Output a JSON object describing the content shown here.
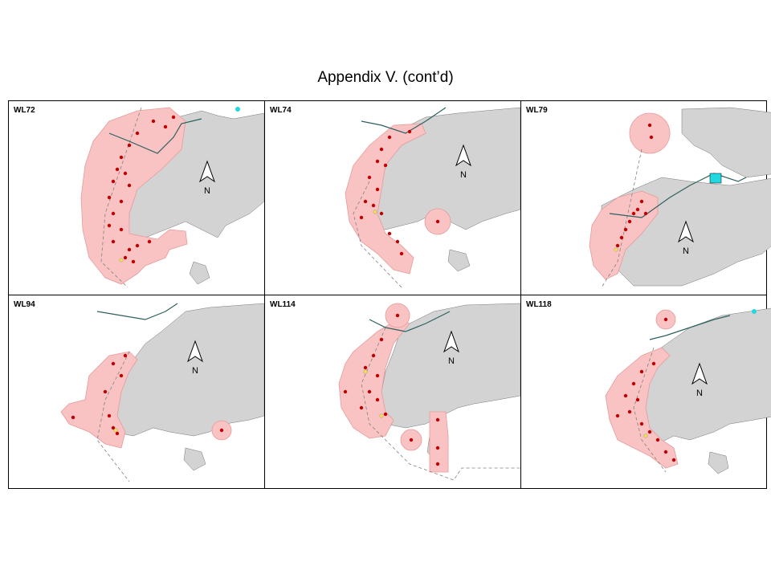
{
  "title": "Appendix V.  (cont’d)",
  "north_label": "N",
  "colors": {
    "land": "#d3d3d3",
    "home_range": "#f9c3c3",
    "range_edge": "#e59a9a",
    "location": "#c00000",
    "location_alt": "#f5e34a",
    "water_body": "#22d8e0",
    "boundary": "#808080"
  },
  "panels": [
    {
      "id": "WL72"
    },
    {
      "id": "WL74"
    },
    {
      "id": "WL79"
    },
    {
      "id": "WL94"
    },
    {
      "id": "WL114"
    },
    {
      "id": "WL118"
    }
  ]
}
